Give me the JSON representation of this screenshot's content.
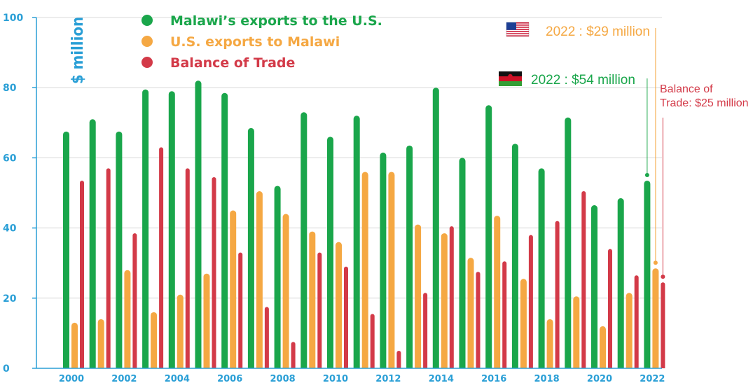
{
  "chart_data": {
    "type": "bar",
    "ylabel": "$ million",
    "ylim": [
      0,
      100
    ],
    "yticks": [
      "0",
      "20",
      "40",
      "60",
      "80",
      "100"
    ],
    "xtick_labels": [
      "2000",
      "2002",
      "2004",
      "2006",
      "2008",
      "2010",
      "2012",
      "2014",
      "2016",
      "2018",
      "2020",
      "2022"
    ],
    "categories": [
      2000,
      2001,
      2002,
      2003,
      2004,
      2005,
      2006,
      2007,
      2008,
      2009,
      2010,
      2011,
      2012,
      2013,
      2014,
      2015,
      2016,
      2017,
      2018,
      2019,
      2020,
      2021,
      2022
    ],
    "series": [
      {
        "name": "Malawi’s exports to the U.S.",
        "color": "#1aa64b",
        "values": [
          67.5,
          71,
          67.5,
          79.5,
          79,
          82,
          78.5,
          68.5,
          52,
          73,
          66,
          72,
          61.5,
          63.5,
          80,
          60,
          75,
          64,
          57,
          71.5,
          46.5,
          48.5,
          53.5
        ]
      },
      {
        "name": "U.S. exports to Malawi",
        "color": "#f5a843",
        "values": [
          13,
          14,
          28,
          16,
          21,
          27,
          45,
          50.5,
          44,
          39,
          36,
          56,
          56,
          41,
          38.5,
          31.5,
          43.5,
          25.5,
          14,
          20.5,
          12,
          21.5,
          28.5
        ]
      },
      {
        "name": "Balance of Trade",
        "color": "#d33a48",
        "values": [
          53.5,
          57,
          38.5,
          63,
          57,
          54.5,
          33,
          17.5,
          7.5,
          33,
          29,
          15.5,
          5,
          21.5,
          40.5,
          27.5,
          30.5,
          38,
          42,
          50.5,
          34,
          26.5,
          24.5
        ]
      }
    ],
    "annotations": {
      "us": "2022 : $29 million",
      "malawi": "2022 : $54 million",
      "balance_line1": "Balance of",
      "balance_line2": "Trade: $25 million"
    },
    "axis_color": "#2a9fd6",
    "legend_position": "top-center"
  }
}
